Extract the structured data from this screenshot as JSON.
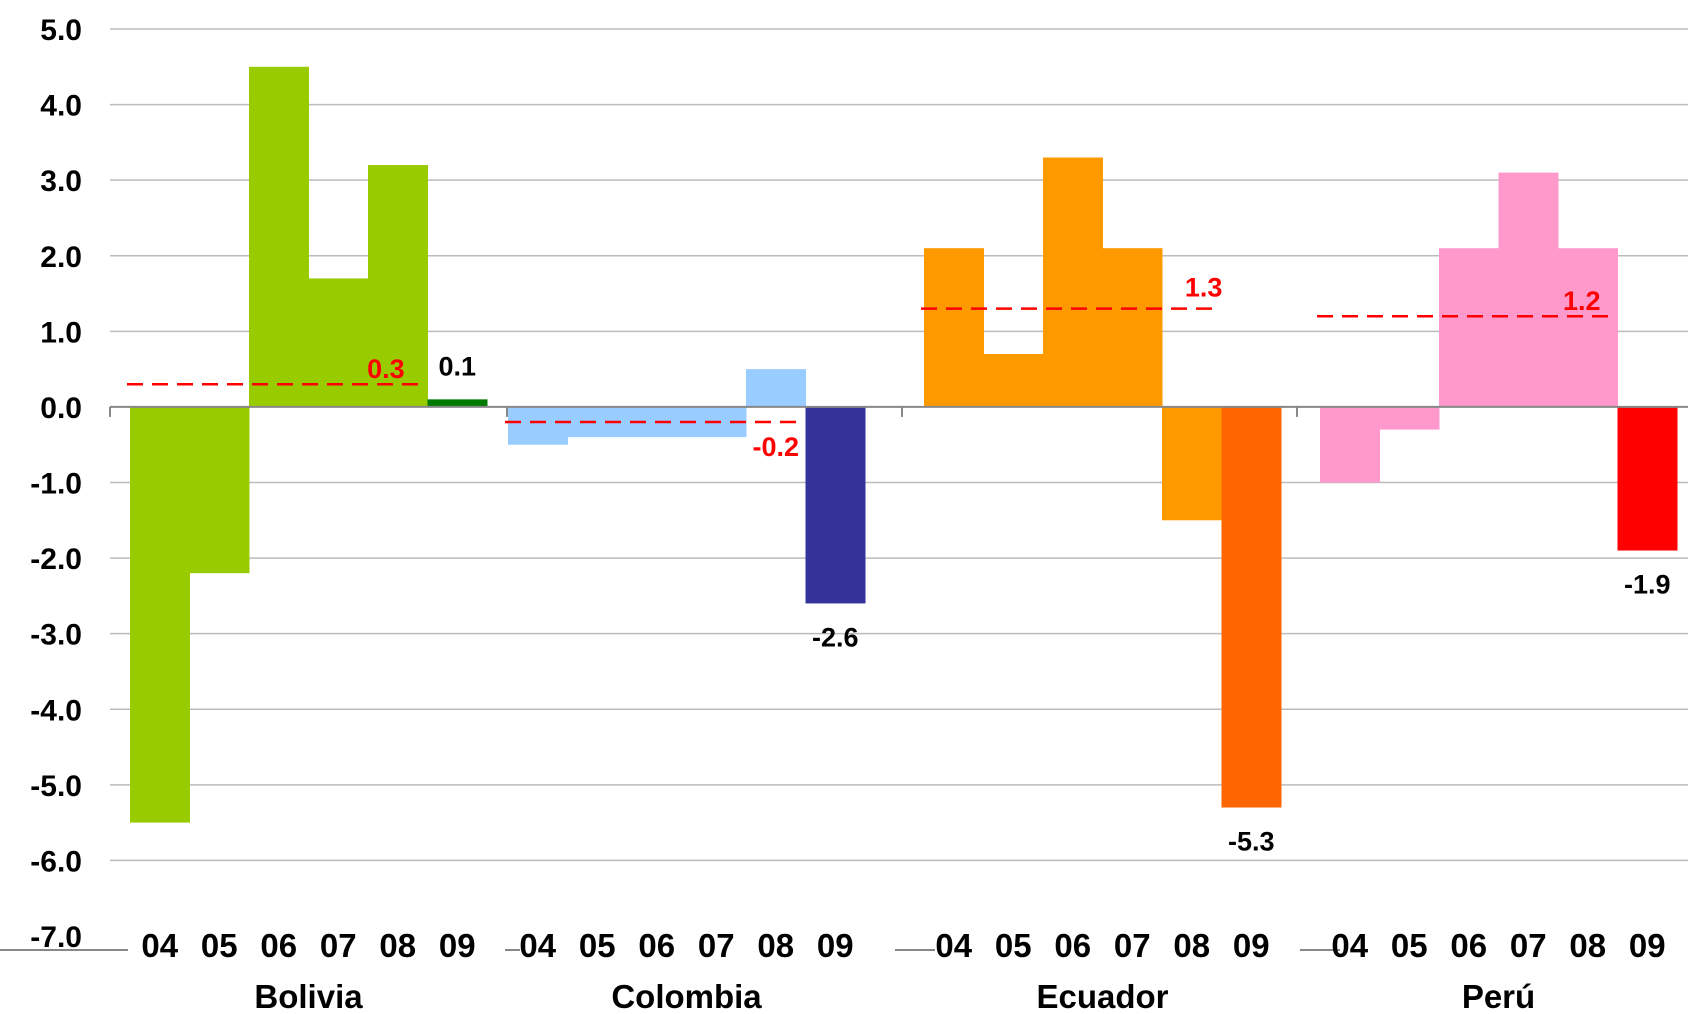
{
  "chart_data": {
    "type": "bar",
    "ylim": [
      -7,
      5
    ],
    "y_ticks": [
      "5.0",
      "4.0",
      "3.0",
      "2.0",
      "1.0",
      "0.0",
      "-1.0",
      "-2.0",
      "-3.0",
      "-4.0",
      "-5.0",
      "-6.0",
      "-7.0"
    ],
    "grid": true,
    "groups": [
      {
        "name": "Bolivia",
        "x": [
          "04",
          "05",
          "06",
          "07",
          "08",
          "09"
        ],
        "values": [
          -5.5,
          -2.2,
          4.5,
          1.7,
          3.2,
          0.1
        ],
        "colors": [
          "#99CC00",
          "#99CC00",
          "#99CC00",
          "#99CC00",
          "#99CC00",
          "#007A00"
        ],
        "average": 0.3,
        "average_label": "0.3",
        "value_label": "0.1"
      },
      {
        "name": "Colombia",
        "x": [
          "04",
          "05",
          "06",
          "07",
          "08",
          "09"
        ],
        "values": [
          -0.5,
          -0.4,
          -0.4,
          -0.4,
          0.5,
          -2.6
        ],
        "colors": [
          "#99CCFF",
          "#99CCFF",
          "#99CCFF",
          "#99CCFF",
          "#99CCFF",
          "#333399"
        ],
        "average": -0.2,
        "average_label": "-0.2",
        "value_label": "-2.6"
      },
      {
        "name": "Ecuador",
        "x": [
          "04",
          "05",
          "06",
          "07",
          "08",
          "09"
        ],
        "values": [
          2.1,
          0.7,
          3.3,
          2.1,
          -1.5,
          -5.3
        ],
        "colors": [
          "#FF9900",
          "#FF9900",
          "#FF9900",
          "#FF9900",
          "#FF9900",
          "#FF6600"
        ],
        "average": 1.3,
        "average_label": "1.3",
        "value_label": "-5.3"
      },
      {
        "name": "Perú",
        "x": [
          "04",
          "05",
          "06",
          "07",
          "08",
          "09"
        ],
        "values": [
          -1.0,
          -0.3,
          2.1,
          3.1,
          2.1,
          -1.9
        ],
        "colors": [
          "#FF99CC",
          "#FF99CC",
          "#FF99CC",
          "#FF99CC",
          "#FF99CC",
          "#FF0000"
        ],
        "average": 1.2,
        "average_label": "1.2",
        "value_label": "-1.9"
      }
    ],
    "average_line_color": "#FF0000",
    "value_label_color": "#000000"
  }
}
